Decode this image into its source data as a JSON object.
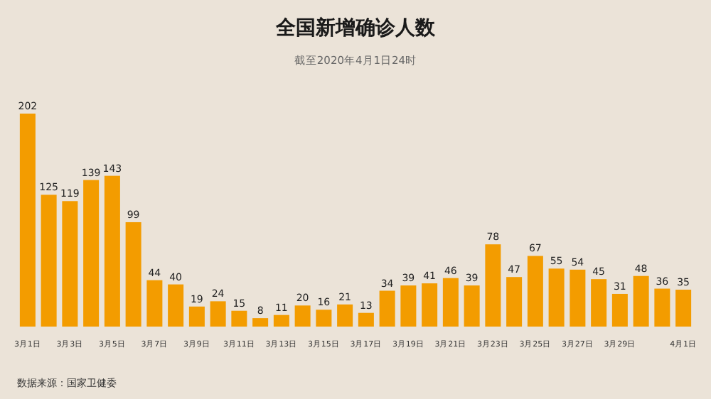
{
  "chart_data": {
    "type": "bar",
    "title": "全国新增确诊人数",
    "subtitle": "截至2020年4月1日24时",
    "categories": [
      "3月1日",
      null,
      "3月3日",
      null,
      "3月5日",
      null,
      "3月7日",
      null,
      "3月9日",
      null,
      "3月11日",
      null,
      "3月13日",
      null,
      "3月15日",
      null,
      "3月17日",
      null,
      "3月19日",
      null,
      "3月21日",
      null,
      "3月23日",
      null,
      "3月25日",
      null,
      "3月27日",
      null,
      "3月29日",
      null,
      null,
      "4月1日"
    ],
    "values": [
      202,
      125,
      119,
      139,
      143,
      99,
      44,
      40,
      19,
      24,
      15,
      8,
      11,
      20,
      16,
      21,
      13,
      34,
      39,
      41,
      46,
      39,
      78,
      47,
      67,
      55,
      54,
      45,
      31,
      48,
      36,
      35
    ],
    "color": "#f39c00",
    "data_labels": true,
    "relative": false,
    "annotations": [
      "数据来源：国家卫健委"
    ]
  }
}
